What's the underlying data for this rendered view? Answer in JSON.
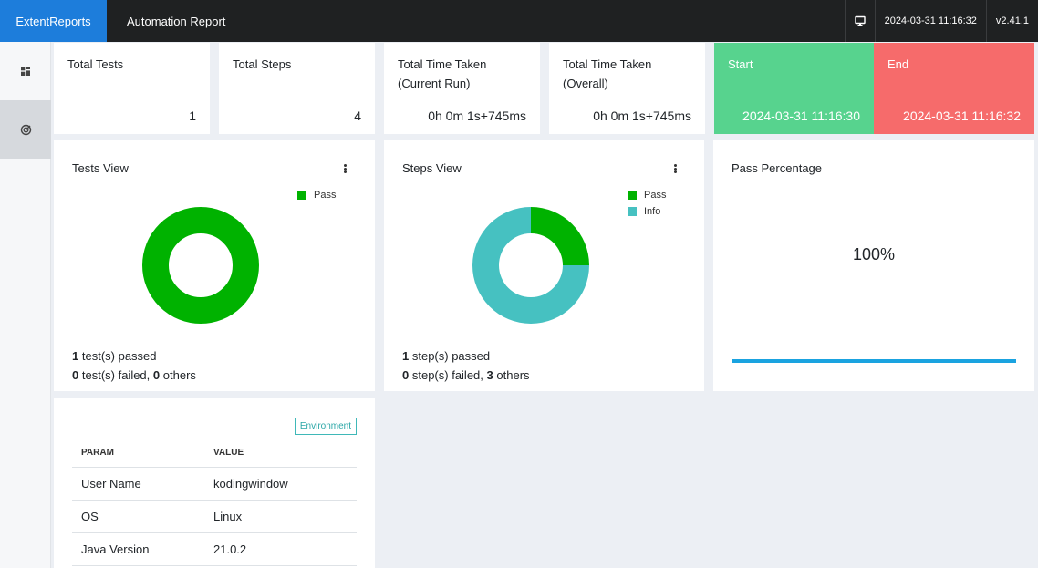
{
  "header": {
    "brand": "ExtentReports",
    "title": "Automation Report",
    "timestamp": "2024-03-31 11:16:32",
    "version": "v2.41.1"
  },
  "sidebar": {
    "items": [
      {
        "name": "dashboard",
        "icon": "grid-icon"
      },
      {
        "name": "tests",
        "icon": "target-icon"
      }
    ]
  },
  "stats": {
    "total_tests": {
      "label": "Total Tests",
      "value": "1"
    },
    "total_steps": {
      "label": "Total Steps",
      "value": "4"
    },
    "time_current": {
      "label_line1": "Total Time Taken",
      "label_line2": "(Current Run)",
      "value": "0h 0m 1s+745ms"
    },
    "time_overall": {
      "label_line1": "Total Time Taken",
      "label_line2": "(Overall)",
      "value": "0h 0m 1s+745ms"
    },
    "start": {
      "label": "Start",
      "value": "2024-03-31 11:16:30"
    },
    "end": {
      "label": "End",
      "value": "2024-03-31 11:16:32"
    }
  },
  "tests_view": {
    "title": "Tests View",
    "legend": [
      {
        "label": "Pass",
        "color": "#00b200"
      }
    ],
    "passed_count": "1",
    "passed_text": "test(s) passed",
    "failed_count": "0",
    "failed_text": "test(s) failed,",
    "others_count": "0",
    "others_text": "others"
  },
  "steps_view": {
    "title": "Steps View",
    "legend": [
      {
        "label": "Pass",
        "color": "#00b200"
      },
      {
        "label": "Info",
        "color": "#46c1c1"
      }
    ],
    "passed_count": "1",
    "passed_text": "step(s) passed",
    "failed_count": "0",
    "failed_text": "step(s) failed,",
    "others_count": "3",
    "others_text": "others"
  },
  "pass_percentage": {
    "title": "Pass Percentage",
    "value": "100%",
    "fraction": 1.0
  },
  "environment": {
    "badge": "Environment",
    "columns": [
      "PARAM",
      "VALUE"
    ],
    "rows": [
      [
        "User Name",
        "kodingwindow"
      ],
      [
        "OS",
        "Linux"
      ],
      [
        "Java Version",
        "21.0.2"
      ]
    ]
  },
  "chart_data": [
    {
      "type": "pie",
      "title": "Tests View",
      "categories": [
        "Pass"
      ],
      "values": [
        1
      ],
      "colors": [
        "#00b200"
      ]
    },
    {
      "type": "pie",
      "title": "Steps View",
      "categories": [
        "Pass",
        "Info"
      ],
      "values": [
        1,
        3
      ],
      "colors": [
        "#00b200",
        "#46c1c1"
      ]
    }
  ]
}
